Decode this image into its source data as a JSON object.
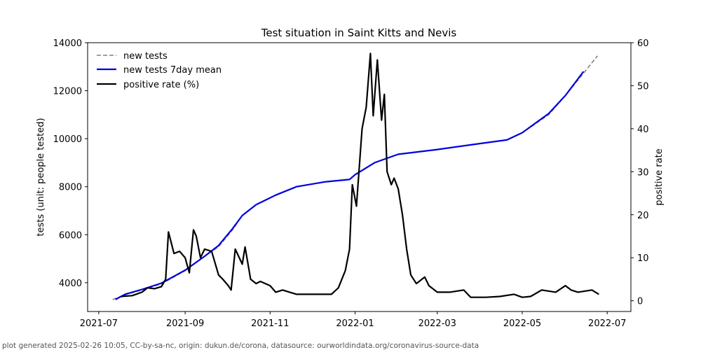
{
  "chart_data": {
    "type": "line",
    "title": "Test situation in Saint Kitts and Nevis",
    "ylabel_left": "tests (unit: people tested)",
    "ylabel_right": "positive rate",
    "ylim_left": [
      2800,
      14000
    ],
    "ylim_right": [
      -2.5,
      60
    ],
    "xlim": [
      "2021-06-23",
      "2022-07-18"
    ],
    "x_ticks": [
      "2021-07-01",
      "2021-09-01",
      "2021-11-01",
      "2022-01-01",
      "2022-03-01",
      "2022-05-01",
      "2022-07-01"
    ],
    "x_tick_labels": [
      "2021-07",
      "2021-09",
      "2021-11",
      "2022-01",
      "2022-03",
      "2022-05",
      "2022-07"
    ],
    "y_left_ticks": [
      4000,
      6000,
      8000,
      10000,
      12000,
      14000
    ],
    "y_right_ticks": [
      0,
      10,
      20,
      30,
      40,
      50,
      60
    ],
    "legend_position": "top-left",
    "series": [
      {
        "name": "new tests",
        "axis": "left",
        "style": "dashed",
        "color": "#808080",
        "points": [
          [
            "2021-07-11",
            3300
          ],
          [
            "2021-07-20",
            3500
          ],
          [
            "2021-08-01",
            3700
          ],
          [
            "2021-08-15",
            3950
          ],
          [
            "2021-09-01",
            4500
          ],
          [
            "2021-09-15",
            5100
          ],
          [
            "2021-09-25",
            5500
          ],
          [
            "2021-10-05",
            6200
          ],
          [
            "2021-10-12",
            6800
          ],
          [
            "2021-10-22",
            7250
          ],
          [
            "2021-11-05",
            7650
          ],
          [
            "2021-11-20",
            8000
          ],
          [
            "2021-12-10",
            8200
          ],
          [
            "2021-12-28",
            8300
          ],
          [
            "2022-01-01",
            8500
          ],
          [
            "2022-01-15",
            9000
          ],
          [
            "2022-02-01",
            9350
          ],
          [
            "2022-03-01",
            9550
          ],
          [
            "2022-04-01",
            9800
          ],
          [
            "2022-04-20",
            9950
          ],
          [
            "2022-05-01",
            10250
          ],
          [
            "2022-05-20",
            11000
          ],
          [
            "2022-06-01",
            11800
          ],
          [
            "2022-06-15",
            12800
          ],
          [
            "2022-06-24",
            13450
          ]
        ]
      },
      {
        "name": "new tests 7day mean",
        "axis": "left",
        "style": "solid",
        "color": "#0000dd",
        "points": [
          [
            "2021-07-13",
            3300
          ],
          [
            "2021-07-20",
            3520
          ],
          [
            "2021-08-01",
            3720
          ],
          [
            "2021-08-15",
            3980
          ],
          [
            "2021-09-01",
            4520
          ],
          [
            "2021-09-15",
            5100
          ],
          [
            "2021-09-25",
            5550
          ],
          [
            "2021-10-05",
            6250
          ],
          [
            "2021-10-12",
            6800
          ],
          [
            "2021-10-22",
            7250
          ],
          [
            "2021-11-05",
            7650
          ],
          [
            "2021-11-20",
            8000
          ],
          [
            "2021-12-10",
            8200
          ],
          [
            "2021-12-28",
            8300
          ],
          [
            "2022-01-01",
            8500
          ],
          [
            "2022-01-15",
            9000
          ],
          [
            "2022-02-01",
            9350
          ],
          [
            "2022-03-01",
            9550
          ],
          [
            "2022-04-01",
            9800
          ],
          [
            "2022-04-20",
            9950
          ],
          [
            "2022-05-01",
            10250
          ],
          [
            "2022-05-20",
            11050
          ],
          [
            "2022-06-01",
            11800
          ],
          [
            "2022-06-14",
            12800
          ]
        ]
      },
      {
        "name": "positive rate (%)",
        "axis": "right",
        "style": "solid",
        "color": "#000000",
        "points": [
          [
            "2021-07-17",
            1.0
          ],
          [
            "2021-07-25",
            1.2
          ],
          [
            "2021-08-01",
            2.0
          ],
          [
            "2021-08-05",
            3.0
          ],
          [
            "2021-08-10",
            2.8
          ],
          [
            "2021-08-15",
            3.3
          ],
          [
            "2021-08-18",
            5.0
          ],
          [
            "2021-08-20",
            16.0
          ],
          [
            "2021-08-24",
            11.0
          ],
          [
            "2021-08-28",
            11.5
          ],
          [
            "2021-09-01",
            10.0
          ],
          [
            "2021-09-04",
            6.5
          ],
          [
            "2021-09-07",
            16.5
          ],
          [
            "2021-09-09",
            15.0
          ],
          [
            "2021-09-12",
            10.0
          ],
          [
            "2021-09-15",
            12.0
          ],
          [
            "2021-09-20",
            11.5
          ],
          [
            "2021-09-25",
            6.0
          ],
          [
            "2021-09-28",
            5.0
          ],
          [
            "2021-10-02",
            3.5
          ],
          [
            "2021-10-04",
            2.5
          ],
          [
            "2021-10-07",
            12.0
          ],
          [
            "2021-10-12",
            8.5
          ],
          [
            "2021-10-14",
            12.5
          ],
          [
            "2021-10-18",
            5.0
          ],
          [
            "2021-10-22",
            4.0
          ],
          [
            "2021-10-25",
            4.5
          ],
          [
            "2021-11-01",
            3.5
          ],
          [
            "2021-11-05",
            2.0
          ],
          [
            "2021-11-10",
            2.5
          ],
          [
            "2021-11-15",
            2.0
          ],
          [
            "2021-11-20",
            1.5
          ],
          [
            "2021-12-01",
            1.5
          ],
          [
            "2021-12-15",
            1.5
          ],
          [
            "2021-12-20",
            3.0
          ],
          [
            "2021-12-25",
            7.0
          ],
          [
            "2021-12-28",
            12.0
          ],
          [
            "2021-12-30",
            27.0
          ],
          [
            "2022-01-02",
            22.0
          ],
          [
            "2022-01-06",
            40.0
          ],
          [
            "2022-01-09",
            45.0
          ],
          [
            "2022-01-12",
            57.5
          ],
          [
            "2022-01-14",
            43.0
          ],
          [
            "2022-01-17",
            56.0
          ],
          [
            "2022-01-20",
            42.0
          ],
          [
            "2022-01-22",
            48.0
          ],
          [
            "2022-01-24",
            30.0
          ],
          [
            "2022-01-27",
            27.0
          ],
          [
            "2022-01-29",
            28.5
          ],
          [
            "2022-02-01",
            26.0
          ],
          [
            "2022-02-04",
            20.0
          ],
          [
            "2022-02-07",
            12.0
          ],
          [
            "2022-02-10",
            6.0
          ],
          [
            "2022-02-14",
            4.0
          ],
          [
            "2022-02-20",
            5.5
          ],
          [
            "2022-02-23",
            3.5
          ],
          [
            "2022-03-01",
            2.0
          ],
          [
            "2022-03-10",
            2.0
          ],
          [
            "2022-03-20",
            2.5
          ],
          [
            "2022-03-25",
            0.8
          ],
          [
            "2022-04-05",
            0.8
          ],
          [
            "2022-04-15",
            1.0
          ],
          [
            "2022-04-25",
            1.5
          ],
          [
            "2022-05-01",
            0.8
          ],
          [
            "2022-05-07",
            1.0
          ],
          [
            "2022-05-15",
            2.5
          ],
          [
            "2022-05-25",
            2.0
          ],
          [
            "2022-06-01",
            3.5
          ],
          [
            "2022-06-05",
            2.5
          ],
          [
            "2022-06-10",
            2.0
          ],
          [
            "2022-06-20",
            2.5
          ],
          [
            "2022-06-25",
            1.5
          ]
        ]
      }
    ]
  },
  "footer": {
    "text": "plot generated 2025-02-26 10:05, CC-by-sa-nc, origin: dukun.de/corona, datasource: ourworldindata.org/coronavirus-source-data"
  }
}
